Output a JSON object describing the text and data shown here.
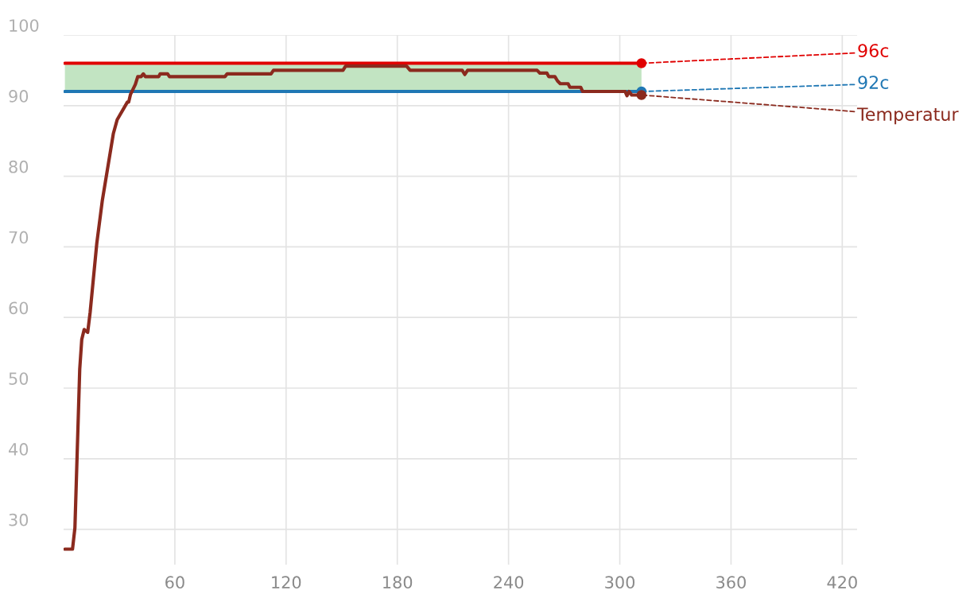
{
  "chart_data": {
    "type": "line",
    "xlim": [
      0,
      428
    ],
    "ylim": [
      25,
      100
    ],
    "xticks": [
      60,
      120,
      180,
      240,
      300,
      360,
      420
    ],
    "yticks": [
      30,
      40,
      50,
      60,
      70,
      80,
      90,
      100
    ],
    "grid": true,
    "line_style": "solid",
    "legend": false,
    "bands": [
      {
        "axis": "y",
        "from": 92,
        "to": 96,
        "color": "#c2e4c2"
      }
    ],
    "series": [
      {
        "name": "96c",
        "color": "#e00000",
        "x": [
          0.7,
          311.7
        ],
        "values": [
          96,
          96
        ]
      },
      {
        "name": "92c",
        "color": "#1f77b4",
        "x": [
          0.7,
          311.7
        ],
        "values": [
          92,
          92
        ]
      },
      {
        "name": "Temperatur",
        "color": "#8b2a1e",
        "x": [
          0.7,
          4.8,
          6.1,
          8.7,
          9.8,
          11.1,
          13.0,
          14.3,
          17.9,
          20.9,
          26.8,
          28.9,
          34.4,
          35.1,
          36.1,
          38.7,
          40.0,
          41.8,
          43.0,
          44.1,
          51.3,
          52.1,
          56.1,
          57.1,
          87.0,
          88.2,
          111.9,
          113.2,
          150.7,
          152.1,
          185.0,
          186.9,
          215.0,
          216.4,
          217.9,
          255.4,
          256.9,
          260.7,
          261.7,
          265.0,
          266.4,
          267.9,
          272.1,
          273.1,
          278.9,
          280.0,
          302.9,
          303.9,
          305.0,
          306.4,
          311.7
        ],
        "values": [
          27.2,
          27.2,
          30.2,
          52.7,
          56.9,
          58.3,
          57.9,
          60.7,
          70.5,
          76.6,
          86.0,
          88.0,
          90.5,
          90.5,
          91.6,
          93.0,
          94.1,
          94.1,
          94.5,
          94.1,
          94.1,
          94.5,
          94.5,
          94.1,
          94.1,
          94.5,
          94.5,
          95.0,
          95.0,
          95.6,
          95.6,
          95.0,
          95.0,
          94.4,
          95.0,
          95.0,
          94.6,
          94.6,
          94.1,
          94.1,
          93.5,
          93.1,
          93.1,
          92.6,
          92.6,
          92.0,
          92.0,
          91.4,
          92.0,
          91.5,
          91.5
        ]
      }
    ]
  }
}
